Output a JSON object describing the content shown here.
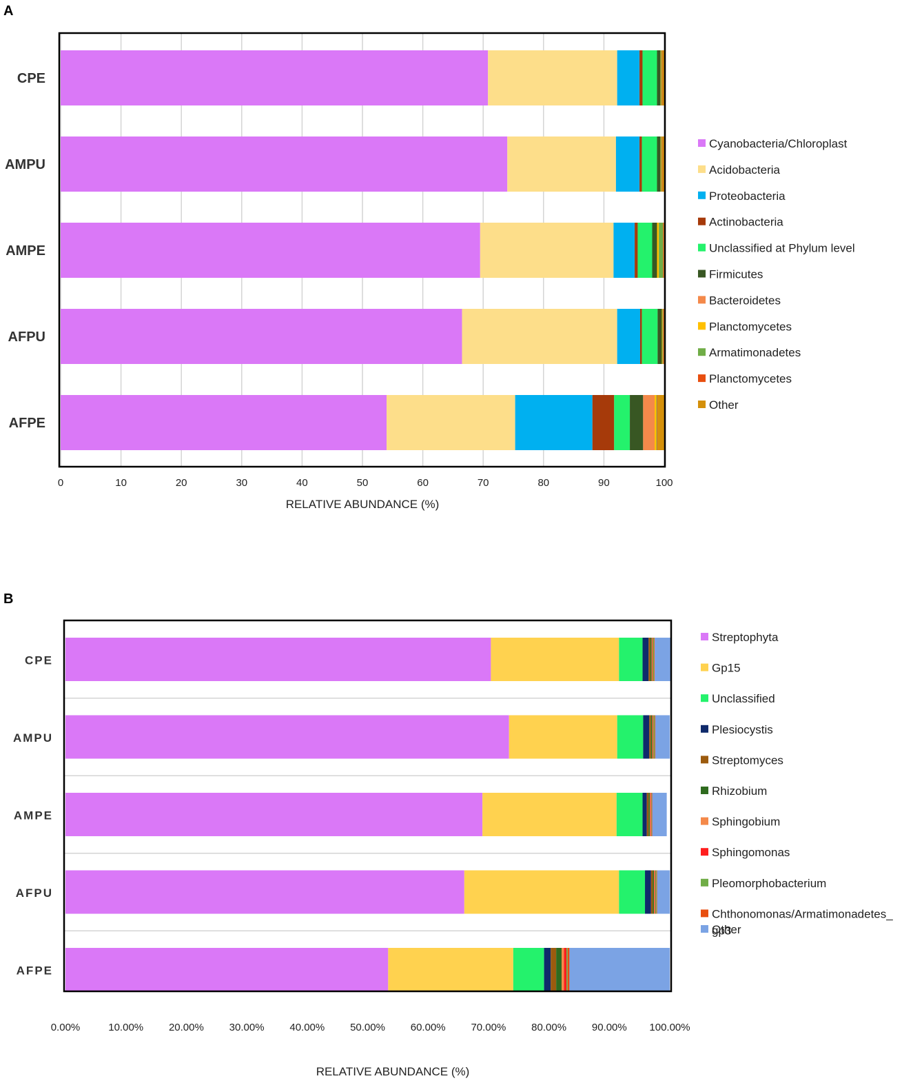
{
  "chart_data": [
    {
      "panel": "A",
      "type": "bar",
      "orientation": "horizontal",
      "stacked": true,
      "categories": [
        "CPE",
        "AMPU",
        "AMPE",
        "AFPU",
        "AFPE"
      ],
      "xlabel": "RELATIVE ABUNDANCE (%)",
      "ylabel": "",
      "xlim": [
        0,
        100
      ],
      "xticks": [
        "0",
        "10",
        "20",
        "30",
        "40",
        "50",
        "60",
        "70",
        "80",
        "90",
        "100"
      ],
      "grid": true,
      "legend_position": "right",
      "series": [
        {
          "name": "Cyanobacteria/Chloroplast",
          "color": "#DA78F7",
          "values": [
            70.8,
            74.0,
            69.5,
            66.5,
            54.0
          ]
        },
        {
          "name": "Acidobacteria",
          "color": "#FDDE8A",
          "values": [
            21.4,
            18.0,
            22.1,
            25.7,
            21.3
          ]
        },
        {
          "name": "Proteobacteria",
          "color": "#00B0F0",
          "values": [
            3.7,
            3.9,
            3.5,
            3.8,
            12.8
          ]
        },
        {
          "name": "Actinobacteria",
          "color": "#A63A0A",
          "values": [
            0.5,
            0.4,
            0.5,
            0.3,
            3.6
          ]
        },
        {
          "name": "Unclassified at Phylum level",
          "color": "#24F26C",
          "values": [
            2.4,
            2.5,
            2.4,
            2.6,
            2.6
          ]
        },
        {
          "name": "Firmicutes",
          "color": "#385723",
          "values": [
            0.6,
            0.6,
            0.8,
            0.7,
            2.2
          ]
        },
        {
          "name": "Bacteroidetes",
          "color": "#F4894A",
          "values": [
            0.0,
            0.0,
            0.0,
            0.0,
            1.9
          ]
        },
        {
          "name": "Planctomycetes",
          "color": "#FFC000",
          "values": [
            0.1,
            0.1,
            0.3,
            0.1,
            0.3
          ]
        },
        {
          "name": "Armatimonadetes",
          "color": "#70AD47",
          "values": [
            0.1,
            0.1,
            0.7,
            0.1,
            0.1
          ]
        },
        {
          "name": "Planctomycetes",
          "color": "#E84E0F",
          "values": [
            0.1,
            0.1,
            0.1,
            0.1,
            0.1
          ]
        },
        {
          "name": "Other",
          "color": "#D4900A",
          "values": [
            0.3,
            0.3,
            0.1,
            0.1,
            1.1
          ]
        }
      ]
    },
    {
      "panel": "B",
      "type": "bar",
      "orientation": "horizontal",
      "stacked": true,
      "categories": [
        "CPE",
        "AMPU",
        "AMPE",
        "AFPU",
        "AFPE"
      ],
      "xlabel": "RELATIVE ABUNDANCE (%)",
      "ylabel": "",
      "xlim": [
        0,
        100
      ],
      "xticks": [
        "0.00%",
        "10.00%",
        "20.00%",
        "30.00%",
        "40.00%",
        "50.00%",
        "60.00%",
        "70.00%",
        "80.00%",
        "90.00%",
        "100.00%"
      ],
      "grid": false,
      "legend_position": "right",
      "series": [
        {
          "name": "Streptophyta",
          "color": "#DA78F7",
          "values": [
            70.4,
            73.4,
            69.0,
            66.0,
            53.4
          ]
        },
        {
          "name": "Gp15",
          "color": "#FFD24F",
          "values": [
            21.2,
            17.9,
            22.2,
            25.6,
            20.7
          ]
        },
        {
          "name": "Unclassified",
          "color": "#24F26C",
          "values": [
            3.9,
            4.3,
            4.3,
            4.3,
            5.1
          ]
        },
        {
          "name": "Plesiocystis",
          "color": "#0F2A6B",
          "values": [
            1.0,
            1.0,
            0.7,
            1.0,
            1.1
          ]
        },
        {
          "name": "Streptomyces",
          "color": "#9C5B0E",
          "values": [
            0.3,
            0.3,
            0.3,
            0.3,
            0.9
          ]
        },
        {
          "name": "Rhizobium",
          "color": "#2F6B1F",
          "values": [
            0.2,
            0.2,
            0.2,
            0.2,
            0.9
          ]
        },
        {
          "name": "Sphingobium",
          "color": "#F4894A",
          "values": [
            0.1,
            0.1,
            0.1,
            0.1,
            0.4
          ]
        },
        {
          "name": "Sphingomonas",
          "color": "#FF1E1E",
          "values": [
            0.1,
            0.1,
            0.1,
            0.1,
            0.4
          ]
        },
        {
          "name": "Pleomorphobacterium",
          "color": "#70AD47",
          "values": [
            0.2,
            0.2,
            0.1,
            0.2,
            0.2
          ]
        },
        {
          "name": "Chthonomonas/Armatimonadetes_",
          "name_line2": "gp3",
          "color": "#E84E0F",
          "values": [
            0.1,
            0.1,
            0.1,
            0.1,
            0.3
          ]
        },
        {
          "name": "Other",
          "color": "#7BA3E4",
          "values": [
            2.6,
            2.4,
            2.4,
            2.1,
            16.6
          ]
        }
      ]
    }
  ],
  "panels": {
    "a_label": "A",
    "b_label": "B"
  }
}
